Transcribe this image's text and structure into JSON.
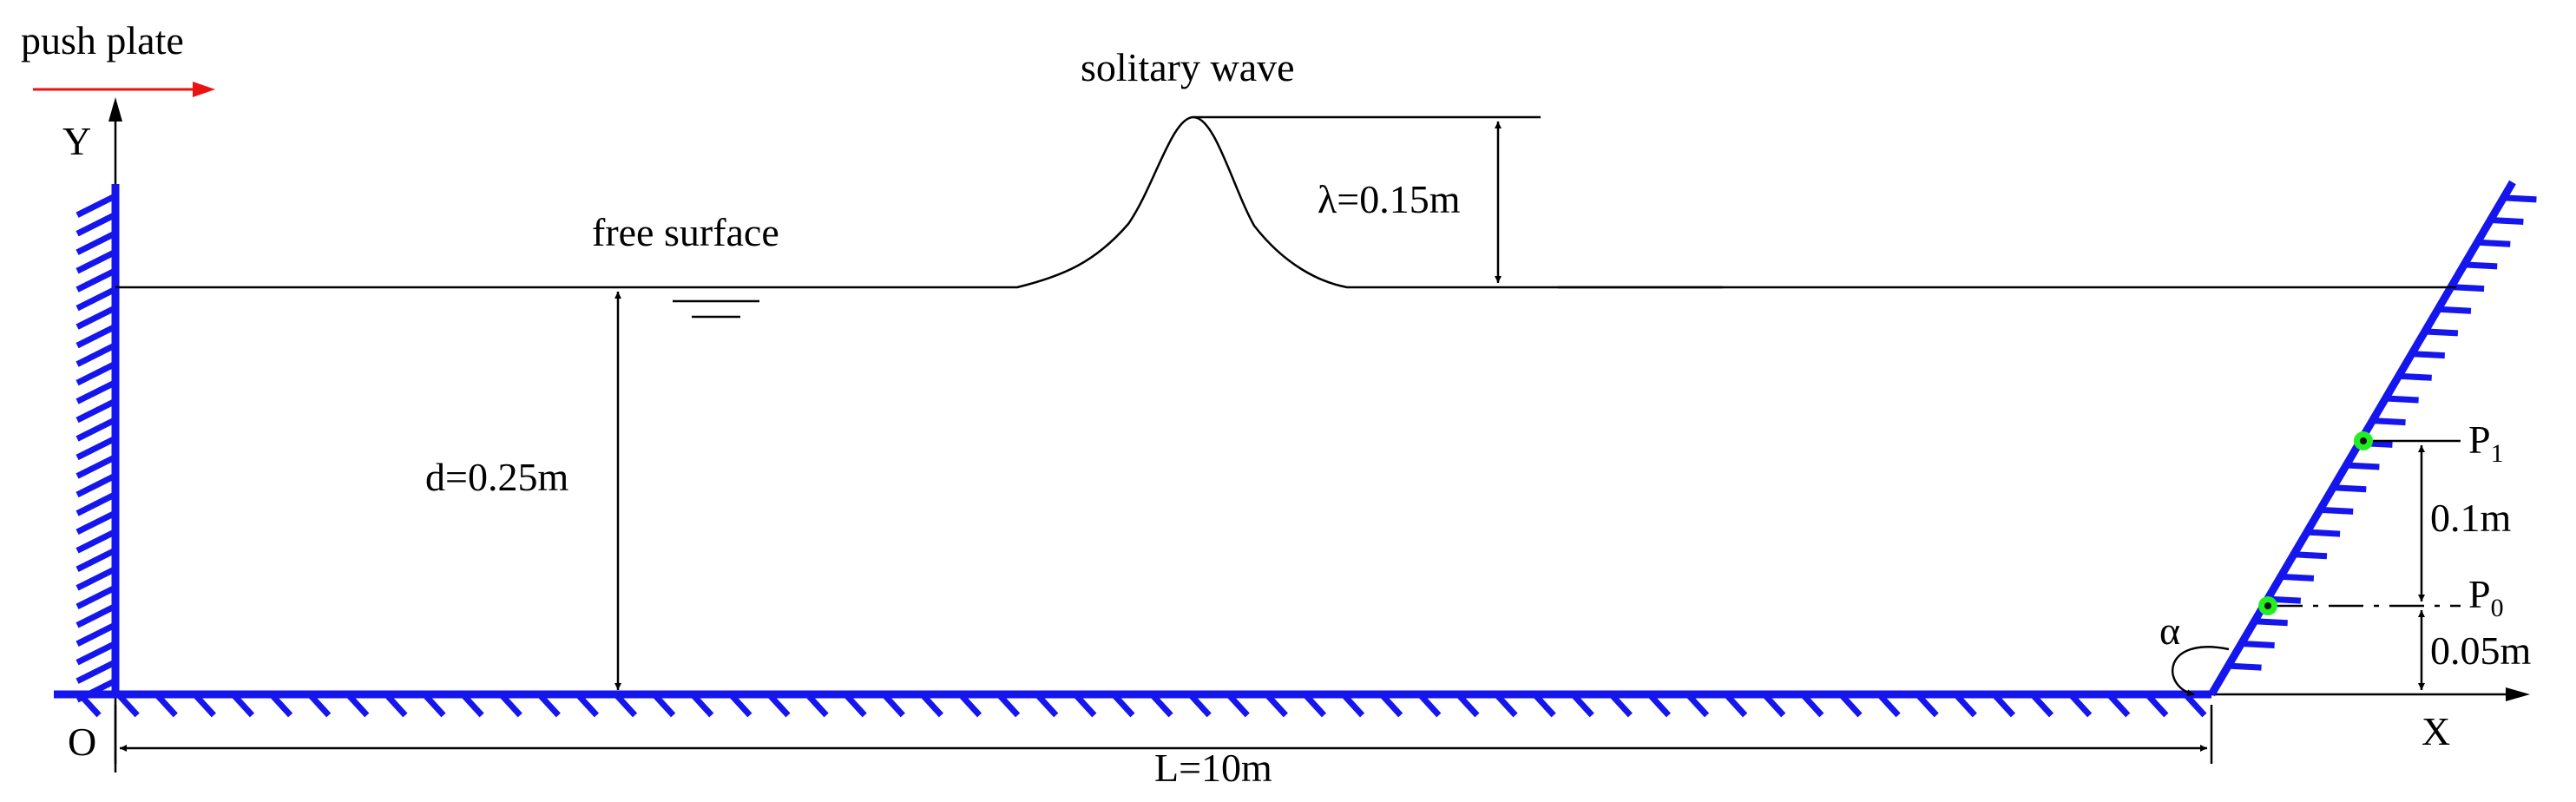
{
  "labels": {
    "push_plate": "push plate",
    "solitary_wave": "solitary wave",
    "free_surface": "free surface",
    "wave_height": "λ=0.15m",
    "depth": "d=0.25m",
    "length": "L=10m",
    "origin": "O",
    "x_axis": "X",
    "y_axis": "Y",
    "angle": "α",
    "p1_base": "P",
    "p1_sub": "1",
    "p0_base": "P",
    "p0_sub": "0",
    "spacing_p1_p0": "0.1m",
    "spacing_p0_bed": "0.05m"
  },
  "colors": {
    "wall": "#1515ee",
    "arrow": "#ee1111",
    "gauge": "#22ee22",
    "line": "#000000"
  }
}
